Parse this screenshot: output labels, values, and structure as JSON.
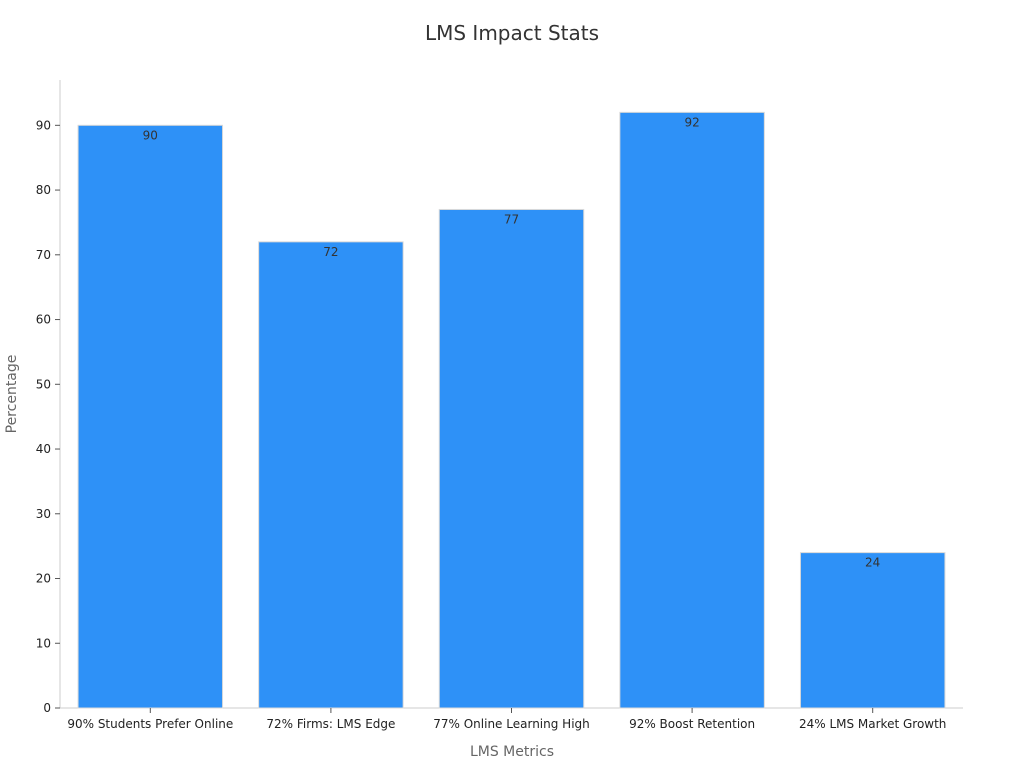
{
  "chart_data": {
    "type": "bar",
    "title": "LMS Impact Stats",
    "xlabel": "LMS Metrics",
    "ylabel": "Percentage",
    "categories": [
      "90% Students Prefer Online",
      "72% Firms: LMS Edge",
      "77% Online Learning High",
      "92% Boost Retention",
      "24% LMS Market Growth"
    ],
    "values": [
      90,
      72,
      77,
      92,
      24
    ],
    "ylim": [
      0,
      97
    ],
    "yticks": [
      0,
      10,
      20,
      30,
      40,
      50,
      60,
      70,
      80,
      90
    ],
    "grid": false,
    "bar_color": "#2e91f7",
    "show_data_labels": true
  }
}
